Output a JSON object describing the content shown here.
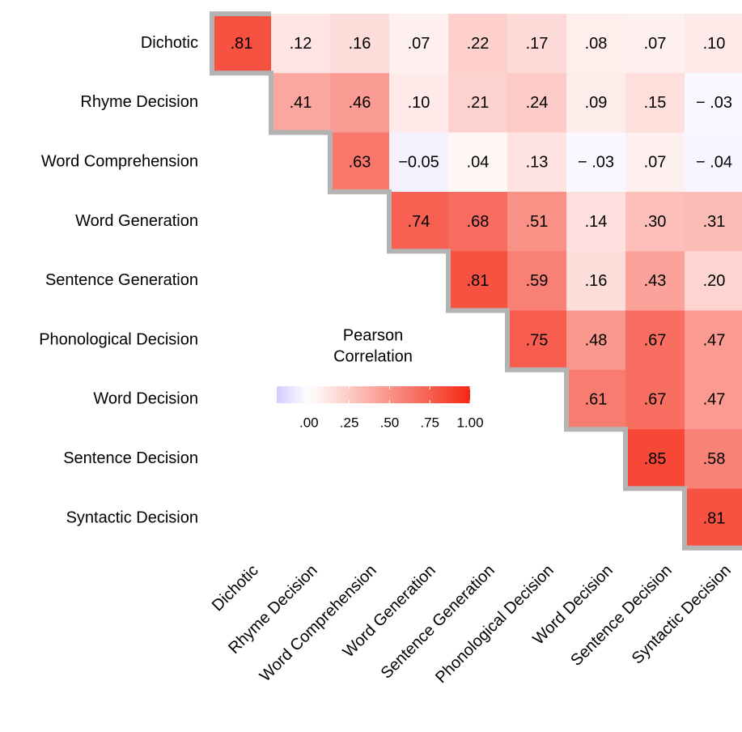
{
  "chart_data": {
    "type": "heatmap",
    "categories": [
      "Dichotic",
      "Rhyme Decision",
      "Word Comprehension",
      "Word Generation",
      "Sentence Generation",
      "Phonological Decision",
      "Word Decision",
      "Sentence Decision",
      "Syntactic Decision"
    ],
    "values": [
      [
        0.81,
        0.12,
        0.16,
        0.07,
        0.22,
        0.17,
        0.08,
        0.07,
        0.1
      ],
      [
        null,
        0.41,
        0.46,
        0.1,
        0.21,
        0.24,
        0.09,
        0.15,
        -0.03
      ],
      [
        null,
        null,
        0.63,
        -0.05,
        0.04,
        0.13,
        -0.03,
        0.07,
        -0.04
      ],
      [
        null,
        null,
        null,
        0.74,
        0.68,
        0.51,
        0.14,
        0.3,
        0.31
      ],
      [
        null,
        null,
        null,
        null,
        0.81,
        0.59,
        0.16,
        0.43,
        0.2
      ],
      [
        null,
        null,
        null,
        null,
        null,
        0.75,
        0.48,
        0.67,
        0.47
      ],
      [
        null,
        null,
        null,
        null,
        null,
        null,
        0.61,
        0.67,
        0.47
      ],
      [
        null,
        null,
        null,
        null,
        null,
        null,
        null,
        0.85,
        0.58
      ],
      [
        null,
        null,
        null,
        null,
        null,
        null,
        null,
        null,
        0.81
      ]
    ],
    "value_labels": [
      [
        ".81",
        ".12",
        ".16",
        ".07",
        ".22",
        ".17",
        ".08",
        ".07",
        ".10"
      ],
      [
        null,
        ".41",
        ".46",
        ".10",
        ".21",
        ".24",
        ".09",
        ".15",
        "− .03"
      ],
      [
        null,
        null,
        ".63",
        "−0.05",
        ".04",
        ".13",
        "− .03",
        ".07",
        "− .04"
      ],
      [
        null,
        null,
        null,
        ".74",
        ".68",
        ".51",
        ".14",
        ".30",
        ".31"
      ],
      [
        null,
        null,
        null,
        null,
        ".81",
        ".59",
        ".16",
        ".43",
        ".20"
      ],
      [
        null,
        null,
        null,
        null,
        null,
        ".75",
        ".48",
        ".67",
        ".47"
      ],
      [
        null,
        null,
        null,
        null,
        null,
        null,
        ".61",
        ".67",
        ".47"
      ],
      [
        null,
        null,
        null,
        null,
        null,
        null,
        null,
        ".85",
        ".58"
      ],
      [
        null,
        null,
        null,
        null,
        null,
        null,
        null,
        null,
        ".81"
      ]
    ],
    "legend_title": [
      "Pearson",
      "Correlation"
    ],
    "clim": [
      -0.2,
      1
    ],
    "cticks": [
      {
        "value": 0,
        "label": ".00"
      },
      {
        "value": 0.25,
        "label": ".25"
      },
      {
        "value": 0.5,
        "label": ".50"
      },
      {
        "value": 0.75,
        "label": ".75"
      },
      {
        "value": 1,
        "label": "1.00"
      }
    ],
    "colors": {
      "low": "#d6ccff",
      "mid": "#ffffff",
      "high": "#f52814"
    },
    "diagonal_border_color": "#b3b3b3"
  }
}
